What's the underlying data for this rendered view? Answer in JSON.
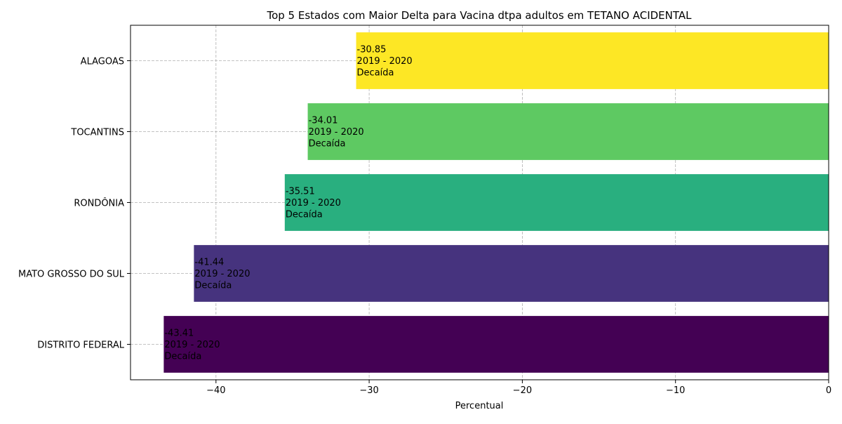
{
  "chart_data": {
    "type": "bar",
    "orientation": "horizontal",
    "title": "Top 5 Estados com Maior Delta para Vacina dtpa adultos em TETANO ACIDENTAL",
    "xlabel": "Percentual",
    "ylabel": "",
    "xlim": [
      -45.58,
      0
    ],
    "xticks": [
      -40,
      -30,
      -20,
      -10,
      0
    ],
    "xtick_labels": [
      "−40",
      "−30",
      "−20",
      "−10",
      "0"
    ],
    "grid": true,
    "categories": [
      "DISTRITO FEDERAL",
      "MATO GROSSO DO SUL",
      "RONDÔNIA",
      "TOCANTINS",
      "ALAGOAS"
    ],
    "values": [
      -43.41,
      -41.44,
      -35.51,
      -34.01,
      -30.85
    ],
    "value_labels": [
      "-43.41",
      "-41.44",
      "-35.51",
      "-34.01",
      "-30.85"
    ],
    "period": "2019 - 2020",
    "trend_label": "Decaída",
    "colors": [
      "#440154",
      "#46337e",
      "#29af7f",
      "#5ec962",
      "#fde725"
    ]
  }
}
